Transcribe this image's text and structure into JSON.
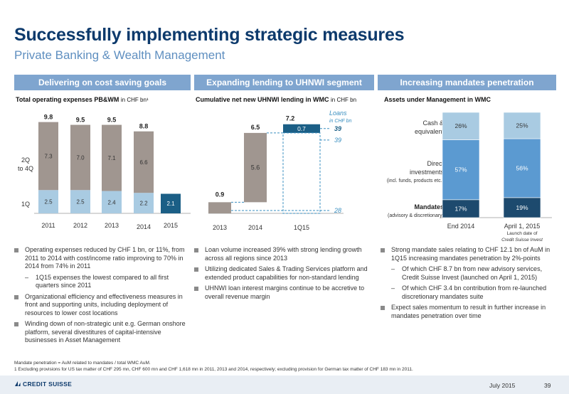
{
  "header": {
    "title": "Successfully implementing strategic measures",
    "subtitle": "Private Banking & Wealth Management"
  },
  "columns": [
    {
      "heading": "Delivering on cost saving goals",
      "chart_title": "Total operating expenses PB&WM",
      "chart_unit": "in CHF bn¹",
      "bullets": [
        {
          "text": "Operating expenses reduced by CHF 1 bn, or 11%, from 2011 to 2014 with cost/income ratio improving to 70% in 2014 from 74% in 2011",
          "sub": [
            "1Q15 expenses the lowest compared to all first quarters since 2011"
          ]
        },
        {
          "text": "Organizational efficiency and effectiveness measures in front and supporting units, including deployment of resources to lower cost locations",
          "sub": []
        },
        {
          "text": "Winding down of non-strategic unit e.g. German onshore platform, several divestitures of capital-intensive businesses in Asset Management",
          "sub": []
        }
      ]
    },
    {
      "heading": "Expanding lending to UHNWI segment",
      "chart_title": "Cumulative net new UHNWI lending in WMC",
      "chart_unit": "in CHF bn",
      "bullets": [
        {
          "text": "Loan volume increased 39% with strong lending growth across all regions since 2013",
          "sub": []
        },
        {
          "text": "Utilizing dedicated Sales & Trading Services platform and extended product capabilities for non-standard lending",
          "sub": []
        },
        {
          "text": "UHNWI loan interest margins continue to be accretive to overall revenue margin",
          "sub": []
        }
      ]
    },
    {
      "heading": "Increasing mandates penetration",
      "chart_title": "Assets under Management in WMC",
      "chart_unit": "",
      "bullets": [
        {
          "text": "Strong mandate sales relating to CHF 12.1 bn of AuM in 1Q15 increasing mandates penetration by 2%-points",
          "sub": [
            "Of which CHF 8.7 bn from new advisory services, Credit Suisse Invest (launched on April 1, 2015)",
            "Of which CHF 3.4 bn contribution from re-launched discretionary mandates suite"
          ]
        },
        {
          "text": "Expect sales momentum to result in further increase in mandates penetration over time",
          "sub": []
        }
      ]
    }
  ],
  "chart_data": [
    {
      "type": "bar",
      "stacked": true,
      "title": "Total operating expenses PB&WM",
      "unit": "in CHF bn¹",
      "categories": [
        "2011",
        "2012",
        "2013",
        "2014",
        "2015"
      ],
      "series": [
        {
          "name": "1Q",
          "values": [
            2.5,
            2.5,
            2.4,
            2.2,
            2.1
          ]
        },
        {
          "name": "2Q to 4Q",
          "values": [
            7.3,
            7.0,
            7.1,
            6.6,
            null
          ]
        }
      ],
      "totals": [
        "9.8",
        "9.5",
        "9.5",
        "8.8",
        ""
      ],
      "labels": {
        "q1": "1Q",
        "q2": "2Q",
        "q2b": "to 4Q"
      },
      "colors": {
        "q1": "#a9cbe2",
        "rest": "#a09690",
        "highlight": "#1b5f86"
      }
    },
    {
      "type": "bar",
      "stacked": true,
      "title": "Cumulative net new UHNWI lending in WMC",
      "unit": "in CHF bn",
      "categories": [
        "2013",
        "2014",
        "1Q15"
      ],
      "series": [
        {
          "values": [
            0.9,
            5.6,
            0.7
          ]
        }
      ],
      "totals": [
        "0.9",
        "6.5",
        "7.2"
      ],
      "annotations": {
        "loans_title": "Loans",
        "loans_unit": "in CHF bn",
        "loans_1q15": "39",
        "loans_2014": "39",
        "loans_2013": "28"
      },
      "colors": {
        "bar": "#a09690",
        "highlight": "#1b5f86",
        "dashed": "#3a8fc0"
      }
    },
    {
      "type": "bar",
      "stacked": true,
      "title": "Assets under Management in WMC",
      "categories": [
        "End 2014",
        "April 1, 2015"
      ],
      "category_notes": [
        "",
        "Launch date of",
        "Credit Suisse Invest"
      ],
      "series": [
        {
          "name": "Mandates",
          "values": [
            17,
            19
          ],
          "labels": [
            "17%",
            "19%"
          ]
        },
        {
          "name": "Direct investments",
          "values": [
            57,
            56
          ],
          "labels": [
            "57%",
            "56%"
          ]
        },
        {
          "name": "Cash & equivalent",
          "values": [
            26,
            25
          ],
          "labels": [
            "26%",
            "25%"
          ]
        }
      ],
      "legend_labels": {
        "cash1": "Cash &",
        "cash2": "equivalent",
        "direct1": "Direct",
        "direct2": "investments",
        "direct3": "(incl. funds, products etc.)",
        "mand1": "Mandates",
        "mand2": "(advisory & discretionary)"
      },
      "colors": {
        "mandates": "#1d4a6e",
        "direct": "#5b9ad1",
        "cash": "#a9cbe2"
      }
    }
  ],
  "footnotes": [
    "Mandate penetration = AuM related to mandates / total WMC AuM.",
    "1 Excluding provisions for US tax matter of CHF 295 mn, CHF 600 mn and CHF 1,618 mn in 2011, 2013 and 2014, respectively; excluding provision for German tax matter of CHF 183 mn in 2011."
  ],
  "footer": {
    "logo": "CREDIT SUISSE",
    "date": "July 2015",
    "page": "39"
  }
}
